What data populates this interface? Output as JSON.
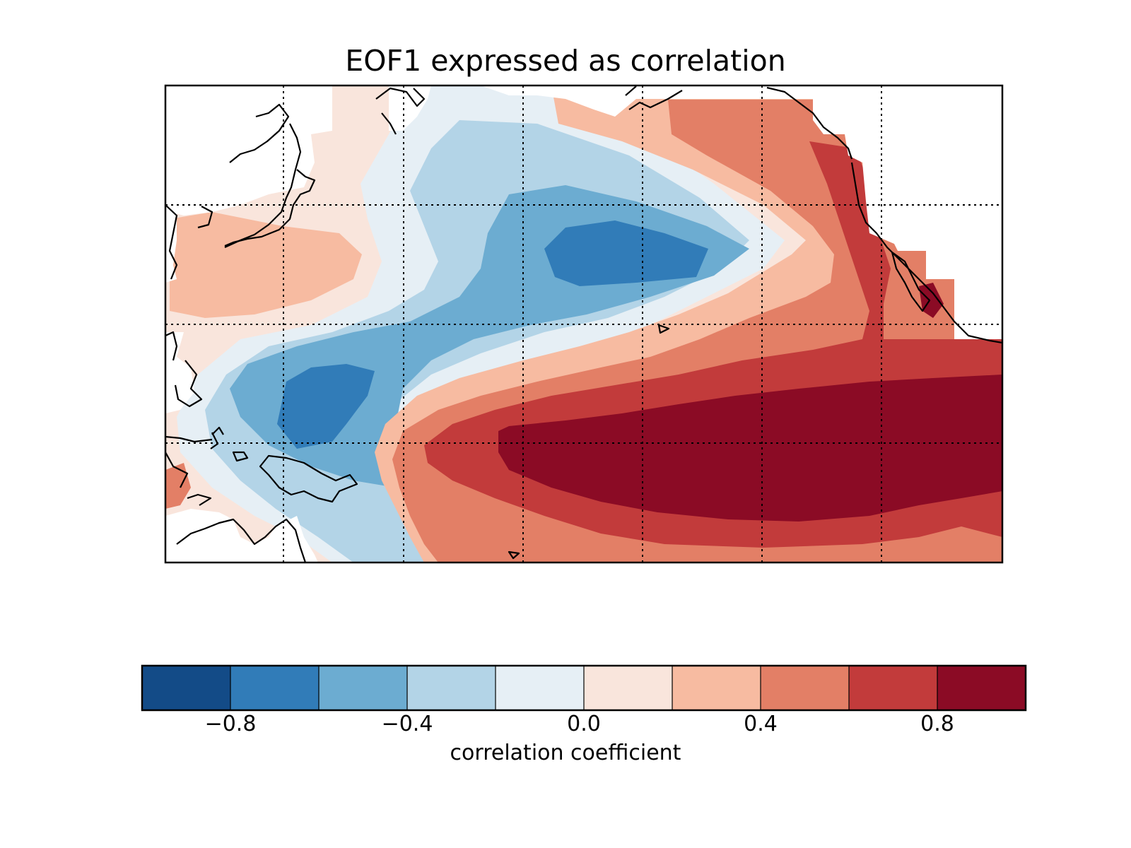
{
  "title": "EOF1 expressed as correlation",
  "chart_data": {
    "type": "filled-contour-map",
    "title": "EOF1 expressed as correlation",
    "region": "North and tropical Pacific Ocean",
    "grid": "dotted lat/lon graticule",
    "coastlines": true,
    "land_masked": true,
    "contour_levels": [
      -1.0,
      -0.8,
      -0.6,
      -0.4,
      -0.2,
      0.0,
      0.2,
      0.4,
      0.6,
      0.8,
      1.0
    ],
    "colormap": [
      "#134b87",
      "#317cb8",
      "#6cacd1",
      "#b3d4e7",
      "#e6eff5",
      "#f9e5dc",
      "#f7bba1",
      "#e37f66",
      "#c23b3b",
      "#8b0b25"
    ],
    "features": [
      {
        "region": "central-north Pacific",
        "correlation_range": [
          -0.8,
          -0.6
        ]
      },
      {
        "region": "western tropical Pacific",
        "correlation_range": [
          -0.8,
          -0.6
        ]
      },
      {
        "region": "central-eastern equatorial Pacific",
        "correlation_range": [
          0.8,
          1.0
        ]
      },
      {
        "region": "North American west coast",
        "correlation_range": [
          0.6,
          1.0
        ]
      },
      {
        "region": "Japan / Kuroshio extension",
        "correlation_range": [
          0.2,
          0.4
        ]
      }
    ],
    "colorbar": {
      "label": "correlation coefficient",
      "ticks": [
        "−0.8",
        "−0.4",
        "0.0",
        "0.4",
        "0.8"
      ],
      "tick_values": [
        -0.8,
        -0.4,
        0.0,
        0.4,
        0.8
      ],
      "range": [
        -1.0,
        1.0
      ],
      "orientation": "horizontal"
    }
  }
}
